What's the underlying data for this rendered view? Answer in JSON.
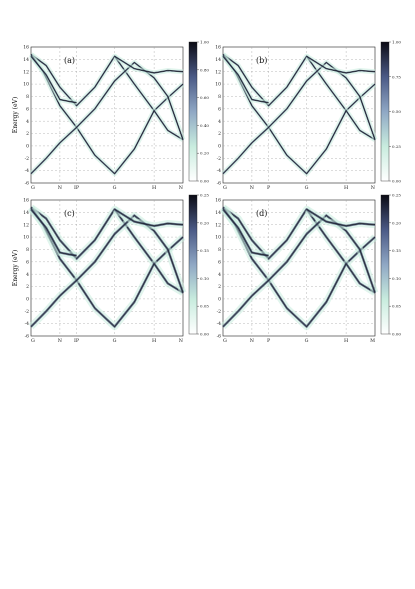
{
  "figure": {
    "ylabel": "Energy (eV)",
    "panels": [
      {
        "label": "(a)"
      },
      {
        "label": "(b)"
      },
      {
        "label": "(c)"
      },
      {
        "label": "(d)"
      }
    ]
  },
  "chart_data": [
    {
      "type": "heatmap",
      "title": "(a)",
      "ylabel": "Energy (eV)",
      "ylim": [
        -6,
        16
      ],
      "y_ticks": [
        -6,
        -4,
        -2,
        0,
        2,
        4,
        6,
        8,
        10,
        12,
        14,
        16
      ],
      "x_ticks": [
        "G",
        "N",
        "IP",
        "G",
        "H",
        "N"
      ],
      "x_tick_pos": [
        0.0,
        0.19,
        0.3,
        0.55,
        0.81,
        1.0
      ],
      "colorbar": {
        "min": 0.0,
        "max": 1.0,
        "ticks": [
          "0.00",
          "0.20",
          "0.40",
          "0.60",
          "0.80",
          "1.00"
        ]
      },
      "grid": true
    },
    {
      "type": "heatmap",
      "title": "(b)",
      "ylabel": "Energy (eV)",
      "ylim": [
        -6,
        16
      ],
      "y_ticks": [
        -6,
        -4,
        -2,
        0,
        2,
        4,
        6,
        8,
        10,
        12,
        14,
        16
      ],
      "x_ticks": [
        "G",
        "N",
        "P",
        "G",
        "H",
        "N"
      ],
      "x_tick_pos": [
        0.0,
        0.19,
        0.3,
        0.55,
        0.81,
        1.0
      ],
      "colorbar": {
        "min": 0.0,
        "max": 1.0,
        "ticks": [
          "0.00",
          "0.25",
          "0.50",
          "0.75",
          "1.00"
        ]
      },
      "grid": true
    },
    {
      "type": "heatmap",
      "title": "(c)",
      "ylabel": "Energy (eV)",
      "ylim": [
        -6,
        16
      ],
      "y_ticks": [
        -6,
        -4,
        -2,
        0,
        2,
        4,
        6,
        8,
        10,
        12,
        14,
        16
      ],
      "x_ticks": [
        "G",
        "N",
        "IP",
        "G",
        "H",
        "N"
      ],
      "x_tick_pos": [
        0.0,
        0.19,
        0.3,
        0.55,
        0.81,
        1.0
      ],
      "colorbar": {
        "min": 0.0,
        "max": 0.25,
        "ticks": [
          "0.00",
          "0.05",
          "0.10",
          "0.15",
          "0.20",
          "0.25"
        ]
      },
      "grid": true
    },
    {
      "type": "heatmap",
      "title": "(d)",
      "ylabel": "Energy (eV)",
      "ylim": [
        -6,
        16
      ],
      "y_ticks": [
        -6,
        -4,
        -2,
        0,
        2,
        4,
        6,
        8,
        10,
        12,
        14,
        16
      ],
      "x_ticks": [
        "G",
        "N",
        "P",
        "G",
        "H",
        "M"
      ],
      "x_tick_pos": [
        0.0,
        0.19,
        0.3,
        0.55,
        0.81,
        1.0
      ],
      "colorbar": {
        "min": 0.0,
        "max": 0.25,
        "ticks": [
          "0.00",
          "0.05",
          "0.10",
          "0.15",
          "0.20",
          "0.25"
        ]
      },
      "grid": true
    }
  ],
  "bands": [
    {
      "name": "band-1",
      "k": [
        0,
        0.1,
        0.19,
        0.3,
        0.42,
        0.55,
        0.68,
        0.81,
        0.9,
        1.0
      ],
      "E": [
        14.8,
        13.0,
        9.5,
        6.5,
        9.5,
        14.5,
        10.0,
        5.7,
        7.8,
        10.0
      ]
    },
    {
      "name": "band-2",
      "k": [
        0,
        0.08,
        0.19,
        0.3,
        0.42,
        0.55,
        0.68,
        0.81,
        0.9,
        1.0
      ],
      "E": [
        14.8,
        12.0,
        6.5,
        3.0,
        -1.5,
        -4.5,
        -0.5,
        5.7,
        2.5,
        1.0
      ]
    },
    {
      "name": "band-3",
      "k": [
        0,
        0.1,
        0.19,
        0.3,
        0.42,
        0.55,
        0.68,
        0.81,
        0.9,
        1.0
      ],
      "E": [
        -4.5,
        -2.0,
        0.5,
        3.0,
        6.0,
        10.5,
        13.5,
        11.0,
        8.0,
        1.0
      ]
    },
    {
      "name": "band-4",
      "k": [
        0,
        0.1,
        0.19,
        0.25,
        0.3
      ],
      "E": [
        14.5,
        11.5,
        7.5,
        7.2,
        7.0
      ]
    },
    {
      "name": "band-5",
      "k": [
        0.55,
        0.68,
        0.81,
        0.9,
        1.0
      ],
      "E": [
        14.5,
        12.5,
        11.8,
        12.2,
        12.0
      ]
    }
  ],
  "colors": {
    "accent": "#303a5c",
    "light": "#c8ecde",
    "grid": "#9a9a9a"
  }
}
